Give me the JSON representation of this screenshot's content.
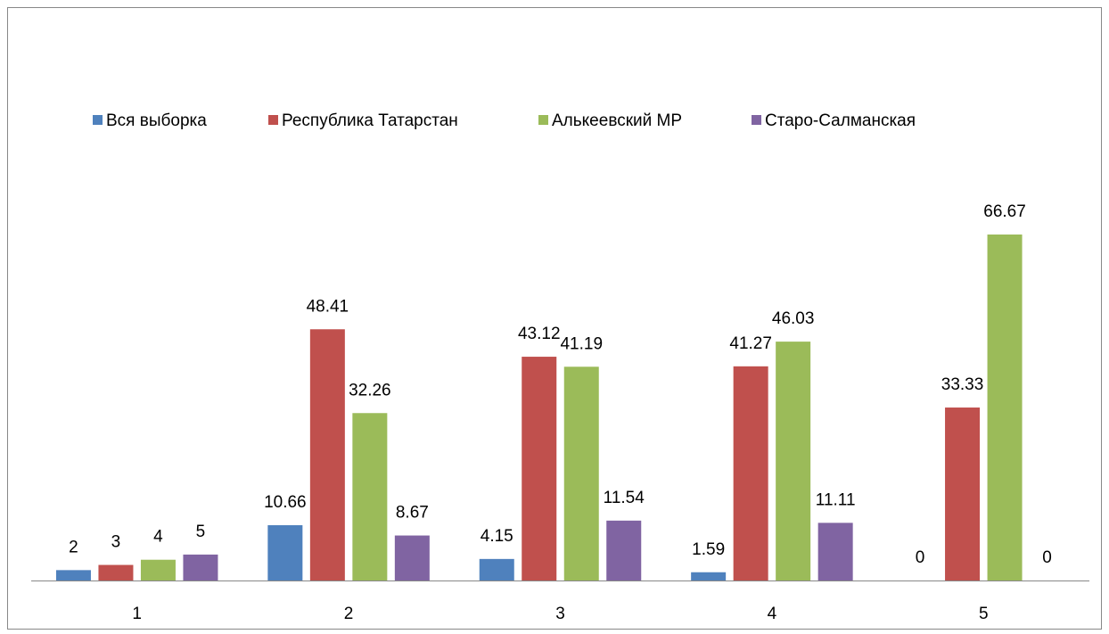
{
  "chart_data": {
    "type": "bar",
    "categories": [
      "1",
      "2",
      "3",
      "4",
      "5"
    ],
    "series": [
      {
        "name": "Вся выборка",
        "color": "#4f81bd",
        "values": [
          2,
          10.66,
          4.15,
          1.59,
          0
        ]
      },
      {
        "name": "Республика Татарстан",
        "color": "#c0504d",
        "values": [
          3,
          48.41,
          43.12,
          41.27,
          33.33
        ]
      },
      {
        "name": "Алькеевский МР",
        "color": "#9bbb59",
        "values": [
          4,
          32.26,
          41.19,
          46.03,
          66.67
        ]
      },
      {
        "name": "Старо-Салманская",
        "color": "#8064a2",
        "values": [
          5,
          8.67,
          11.54,
          11.11,
          0
        ]
      }
    ],
    "legend": "top"
  }
}
